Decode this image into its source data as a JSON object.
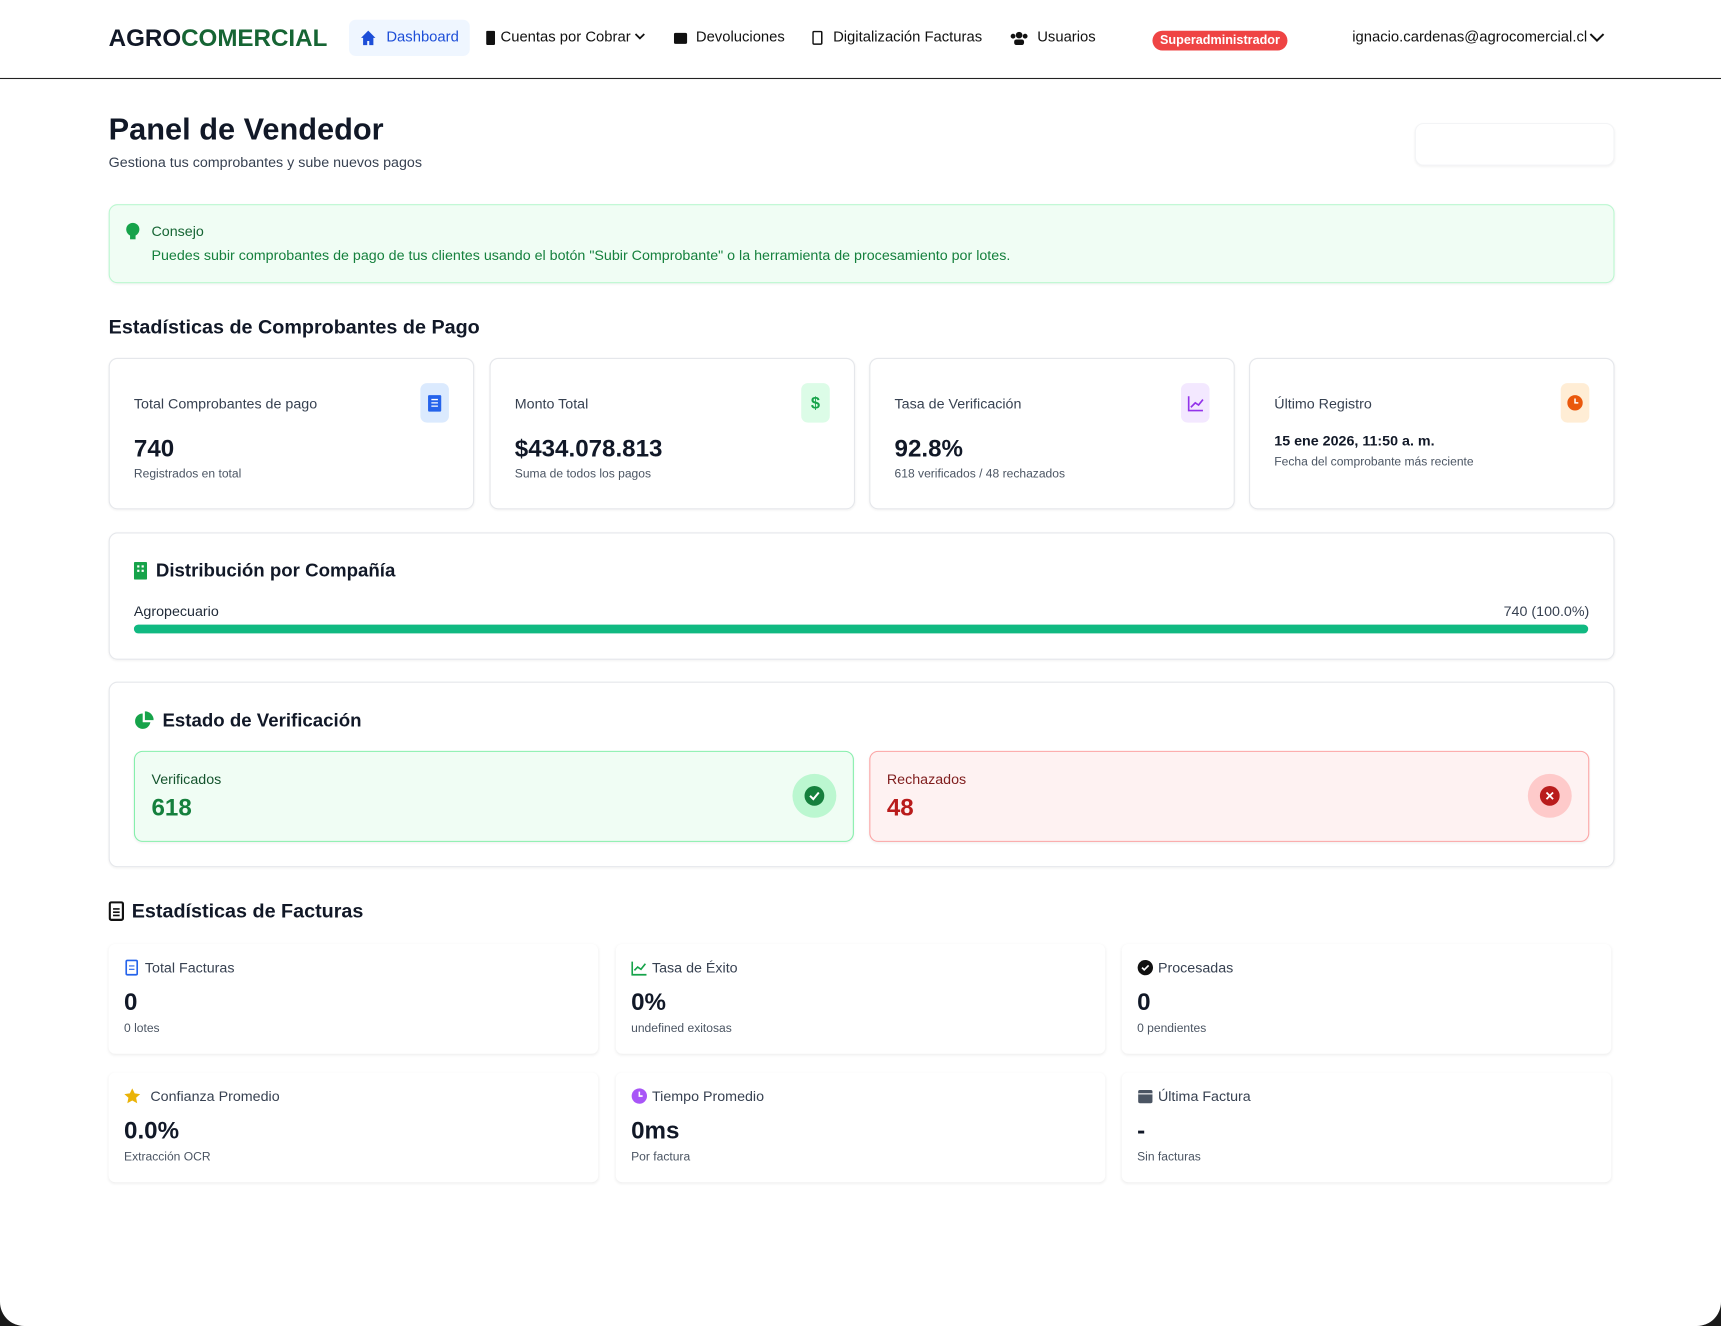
{
  "nav": {
    "brand_a": "AGRO",
    "brand_b": "COMERCIAL",
    "items": [
      "Dashboard",
      "Cuentas por Cobrar",
      "Devoluciones",
      "Digitalización Facturas",
      "Usuarios"
    ],
    "role": "Superadministrador",
    "user": "ignacio.cardenas@agrocomercial.cl"
  },
  "header": {
    "title": "Panel de Vendedor",
    "subtitle": "Gestiona tus comprobantes y sube nuevos pagos"
  },
  "tip": {
    "title": "Consejo",
    "text": "Puedes subir comprobantes de pago de tus clientes usando el botón \"Subir Comprobante\" o la herramienta de procesamiento por lotes."
  },
  "payment_stats": {
    "title": "Estadísticas de Comprobantes de Pago",
    "cards": [
      {
        "label": "Total Comprobantes de pago",
        "value": "740",
        "note": "Registrados en total"
      },
      {
        "label": "Monto Total",
        "value": "$434.078.813",
        "note": "Suma de todos los pagos"
      },
      {
        "label": "Tasa de Verificación",
        "value": "92.8%",
        "note": "618 verificados / 48 rechazados"
      },
      {
        "label": "Último Registro",
        "value": "15 ene 2026, 11:50 a. m.",
        "note": "Fecha del comprobante más reciente"
      }
    ]
  },
  "distribution": {
    "title": "Distribución por Compañía",
    "rows": [
      {
        "name": "Agropecuario",
        "label": "740 (100.0%)",
        "percent": 100.0
      }
    ]
  },
  "verification": {
    "title": "Estado de Verificación",
    "verified": {
      "label": "Verificados",
      "value": "618"
    },
    "rejected": {
      "label": "Rechazados",
      "value": "48"
    }
  },
  "invoice_stats": {
    "title": "Estadísticas de Facturas",
    "cards": [
      {
        "label": "Total Facturas",
        "value": "0",
        "note": "0 lotes"
      },
      {
        "label": "Tasa de Éxito",
        "value": "0%",
        "note": "undefined exitosas"
      },
      {
        "label": "Procesadas",
        "value": "0",
        "note": "0 pendientes"
      },
      {
        "label": "Confianza Promedio",
        "value": "0.0%",
        "note": "Extracción OCR"
      },
      {
        "label": "Tiempo Promedio",
        "value": "0ms",
        "note": "Por factura"
      },
      {
        "label": "Última Factura",
        "value": "-",
        "note": "Sin facturas"
      }
    ]
  }
}
